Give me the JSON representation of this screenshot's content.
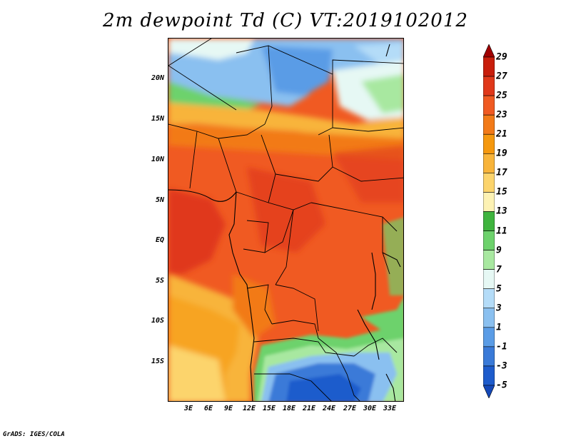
{
  "title": "2m dewpoint Td (C) VT:2019102012",
  "credit": "GrADS: IGES/COLA",
  "map": {
    "latitude_labels": [
      "20N",
      "15N",
      "10N",
      "5N",
      "EQ",
      "5S",
      "10S",
      "15S"
    ],
    "longitude_labels": [
      "3E",
      "6E",
      "9E",
      "12E",
      "15E",
      "18E",
      "21E",
      "24E",
      "27E",
      "30E",
      "33E"
    ]
  },
  "colorbar": {
    "labels": [
      "29",
      "27",
      "25",
      "23",
      "21",
      "19",
      "17",
      "15",
      "13",
      "11",
      "9",
      "7",
      "5",
      "3",
      "1",
      "-1",
      "-3",
      "-5"
    ],
    "colors": [
      "#a00000",
      "#c81e0c",
      "#e0381a",
      "#f05a22",
      "#f27a18",
      "#f5980e",
      "#f8b43a",
      "#fcd46c",
      "#fdf2b4",
      "#3fb43e",
      "#6dd26c",
      "#a8e8a0",
      "#e6f8f4",
      "#b4dcf8",
      "#8ac0f0",
      "#5a9ce6",
      "#3a7ad8",
      "#1e5ccc",
      "#1448b8"
    ]
  }
}
